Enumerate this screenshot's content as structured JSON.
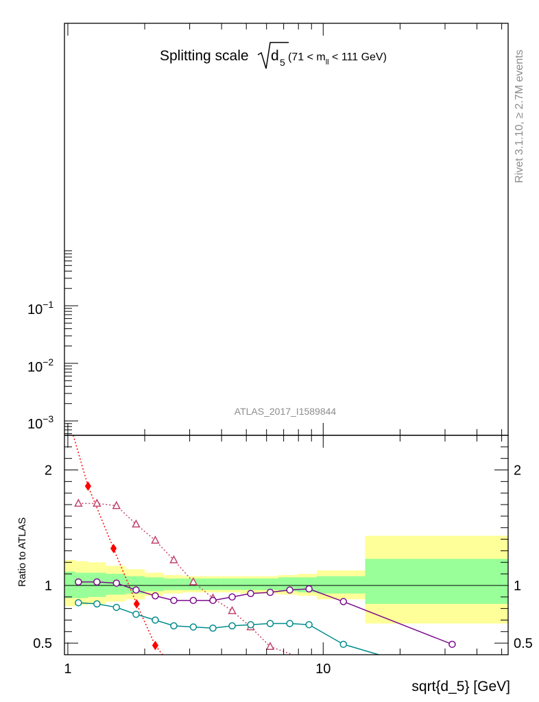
{
  "title": {
    "main": "Splitting scale",
    "d": "d",
    "sub5": "5",
    "range_open": " (71 < m",
    "range_sub": "ll",
    "range_close": " < 111 GeV)"
  },
  "side_label": "Rivet 3.1.10, ≥ 2.7M events",
  "analysis_tag": "ATLAS_2017_I1589844",
  "xlabel": "sqrt{d_5} [GeV]",
  "ratio_ylabel": "Ratio to ATLAS",
  "top_ticks": {
    "labels": [
      {
        "base": "10",
        "exp": "−1",
        "value": 0.1
      },
      {
        "base": "10",
        "exp": "−2",
        "value": 0.01
      },
      {
        "base": "10",
        "exp": "−3",
        "value": 0.001
      }
    ]
  },
  "chart_data": {
    "type": "line",
    "xscale": "log",
    "xlim": [
      0.97,
      53
    ],
    "xticks": [
      {
        "value": 1,
        "label": "1"
      },
      {
        "value": 10,
        "label": "10"
      }
    ],
    "top_panel": {
      "yscale": "log",
      "series": []
    },
    "ratio_panel": {
      "ylim": [
        0.4,
        2.3
      ],
      "yticks": [
        {
          "value": 0.5,
          "label": "0.5"
        },
        {
          "value": 1,
          "label": "1"
        },
        {
          "value": 2,
          "label": "2"
        }
      ],
      "bins": [
        {
          "lo": 0.97,
          "hi": 1.07,
          "in": [
            0.89,
            1.12
          ],
          "out": [
            0.82,
            1.22
          ]
        },
        {
          "lo": 1.07,
          "hi": 1.2,
          "in": [
            0.89,
            1.11
          ],
          "out": [
            0.83,
            1.21
          ]
        },
        {
          "lo": 1.2,
          "hi": 1.41,
          "in": [
            0.9,
            1.11
          ],
          "out": [
            0.84,
            1.2
          ]
        },
        {
          "lo": 1.41,
          "hi": 1.68,
          "in": [
            0.92,
            1.1
          ],
          "out": [
            0.86,
            1.17
          ]
        },
        {
          "lo": 1.68,
          "hi": 2.0,
          "in": [
            0.93,
            1.08
          ],
          "out": [
            0.88,
            1.14
          ]
        },
        {
          "lo": 2.0,
          "hi": 2.37,
          "in": [
            0.95,
            1.07
          ],
          "out": [
            0.91,
            1.11
          ]
        },
        {
          "lo": 2.37,
          "hi": 2.82,
          "in": [
            0.96,
            1.06
          ],
          "out": [
            0.93,
            1.09
          ]
        },
        {
          "lo": 2.82,
          "hi": 3.35,
          "in": [
            0.96,
            1.06
          ],
          "out": [
            0.94,
            1.08
          ]
        },
        {
          "lo": 3.35,
          "hi": 3.98,
          "in": [
            0.96,
            1.06
          ],
          "out": [
            0.94,
            1.08
          ]
        },
        {
          "lo": 3.98,
          "hi": 4.73,
          "in": [
            0.96,
            1.06
          ],
          "out": [
            0.94,
            1.08
          ]
        },
        {
          "lo": 4.73,
          "hi": 5.62,
          "in": [
            0.96,
            1.06
          ],
          "out": [
            0.93,
            1.08
          ]
        },
        {
          "lo": 5.62,
          "hi": 6.68,
          "in": [
            0.96,
            1.06
          ],
          "out": [
            0.93,
            1.08
          ]
        },
        {
          "lo": 6.68,
          "hi": 7.94,
          "in": [
            0.95,
            1.07
          ],
          "out": [
            0.92,
            1.09
          ]
        },
        {
          "lo": 7.94,
          "hi": 9.44,
          "in": [
            0.94,
            1.07
          ],
          "out": [
            0.91,
            1.1
          ]
        },
        {
          "lo": 9.44,
          "hi": 14.6,
          "in": [
            0.93,
            1.08
          ],
          "out": [
            0.88,
            1.13
          ]
        },
        {
          "lo": 14.6,
          "hi": 53,
          "in": [
            0.84,
            1.23
          ],
          "out": [
            0.67,
            1.43
          ]
        }
      ],
      "series": [
        {
          "color": "#ff0000",
          "marker": "diamond",
          "dash": "2,3",
          "x": [
            1.2,
            1.51,
            1.86,
            2.2
          ],
          "y": [
            1.86,
            1.32,
            0.84,
            0.48
          ],
          "ext_start": [
            1.05,
            2.3
          ],
          "ext_end": [
            2.35,
            0.4
          ]
        },
        {
          "color": "#c1446b",
          "marker": "triangle",
          "dash": "2,3",
          "x": [
            1.1,
            1.3,
            1.55,
            1.85,
            2.2,
            2.6,
            3.1,
            3.7,
            4.4,
            5.2,
            6.2
          ],
          "y": [
            1.71,
            1.71,
            1.69,
            1.53,
            1.39,
            1.22,
            1.03,
            0.89,
            0.78,
            0.64,
            0.47
          ],
          "ext_end": [
            7.6,
            0.4
          ]
        },
        {
          "color": "#7a0a8c",
          "marker": "circle",
          "dash": "",
          "x": [
            1.1,
            1.3,
            1.55,
            1.85,
            2.2,
            2.6,
            3.1,
            3.7,
            4.4,
            5.2,
            6.2,
            7.4,
            8.8,
            12,
            32
          ],
          "y": [
            1.03,
            1.03,
            1.02,
            0.96,
            0.91,
            0.87,
            0.87,
            0.87,
            0.9,
            0.93,
            0.94,
            0.96,
            0.97,
            0.86,
            0.49
          ]
        },
        {
          "color": "#008b8b",
          "marker": "circle",
          "dash": "",
          "x": [
            1.1,
            1.3,
            1.55,
            1.85,
            2.2,
            2.6,
            3.1,
            3.7,
            4.4,
            5.2,
            6.2,
            7.4,
            8.8,
            12
          ],
          "y": [
            0.85,
            0.84,
            0.81,
            0.75,
            0.7,
            0.65,
            0.64,
            0.63,
            0.65,
            0.66,
            0.67,
            0.67,
            0.66,
            0.49
          ],
          "ext_end": [
            16.5,
            0.4
          ]
        }
      ]
    }
  },
  "colors": {
    "band_outer": "#ffff99",
    "band_inner": "#99ff99",
    "axis": "#000000",
    "grey_text": "#8c8c8c"
  }
}
